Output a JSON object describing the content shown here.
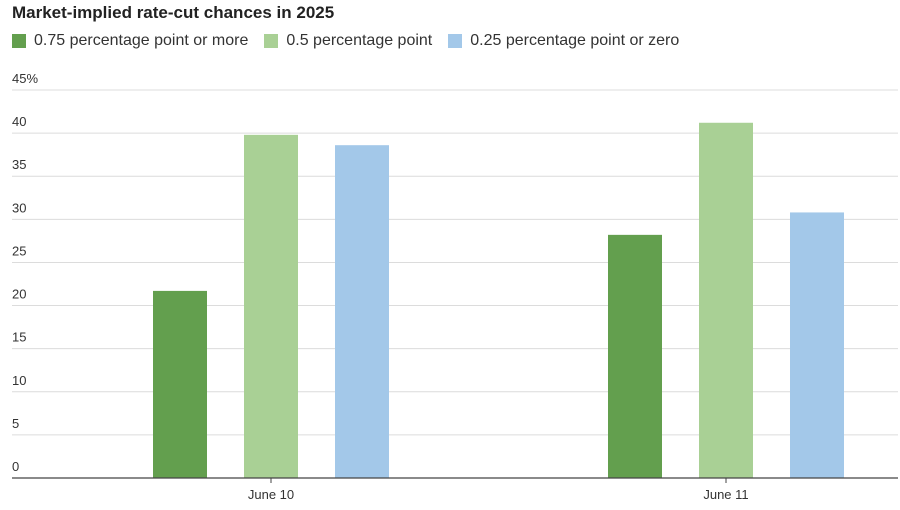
{
  "chart_data": {
    "type": "bar",
    "title": "Market-implied rate-cut chances in 2025",
    "xlabel": "",
    "ylabel": "",
    "ylim": [
      0,
      45
    ],
    "y_ticks": [
      "0",
      "5",
      "10",
      "15",
      "20",
      "25",
      "30",
      "35",
      "40",
      "45%"
    ],
    "y_tick_values": [
      0,
      5,
      10,
      15,
      20,
      25,
      30,
      35,
      40,
      45
    ],
    "grid": true,
    "legend_position": "top-left",
    "categories": [
      "June 10",
      "June 11"
    ],
    "series": [
      {
        "name": "0.75 percentage point or more",
        "color": "#639f4e",
        "values": [
          21.7,
          28.2
        ]
      },
      {
        "name": "0.5 percentage point",
        "color": "#a9d095",
        "values": [
          39.8,
          41.2
        ]
      },
      {
        "name": "0.25 percentage point or zero",
        "color": "#a3c8e9",
        "values": [
          38.6,
          30.8
        ]
      }
    ]
  }
}
